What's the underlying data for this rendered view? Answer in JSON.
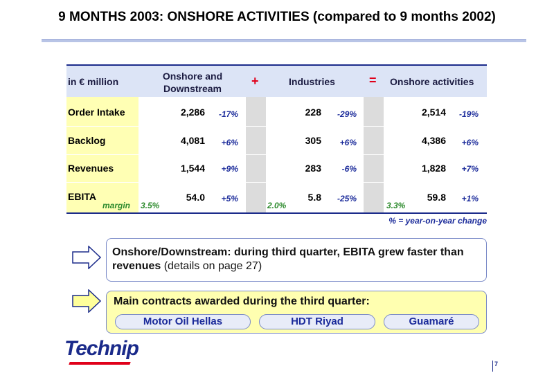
{
  "title": "9 MONTHS 2003: ONSHORE ACTIVITIES (compared to 9 months 2002)",
  "table": {
    "unit_label": "in € million",
    "col1_header": "Onshore and Downstream",
    "plus_sign": "+",
    "col2_header": "Industries",
    "equals_sign": "=",
    "col3_header": "Onshore activities",
    "rows": [
      {
        "label": "Order Intake",
        "v1": "2,286",
        "p1": "-17%",
        "v2": "228",
        "p2": "-29%",
        "v3": "2,514",
        "p3": "-19%"
      },
      {
        "label": "Backlog",
        "v1": "4,081",
        "p1": "+6%",
        "v2": "305",
        "p2": "+6%",
        "v3": "4,386",
        "p3": "+6%"
      },
      {
        "label": "Revenues",
        "v1": "1,544",
        "p1": "+9%",
        "v2": "283",
        "p2": "-6%",
        "v3": "1,828",
        "p3": "+7%"
      },
      {
        "label": "EBITA",
        "v1": "54.0",
        "p1": "+5%",
        "v2": "5.8",
        "p2": "-25%",
        "v3": "59.8",
        "p3": "+1%"
      }
    ],
    "margin_label": "margin",
    "margin1": "3.5%",
    "margin2": "2.0%",
    "margin3": "3.3%",
    "note": "% = year-on-year change"
  },
  "box1": {
    "bold_text": "Onshore/Downstream: during third quarter, EBITA grew faster than revenues",
    "normal_text": "(details on page 27)"
  },
  "box2": {
    "heading": "Main contracts awarded during the third quarter:",
    "contracts": [
      "Motor Oil Hellas",
      "HDT Riyad",
      "Guamaré"
    ]
  },
  "logo": "Technip",
  "page_number": "7",
  "colors": {
    "accent": "#1a2a8a",
    "operator": "#e0001a",
    "margin_green": "#2e8b2e",
    "yellow": "#ffffb4"
  }
}
